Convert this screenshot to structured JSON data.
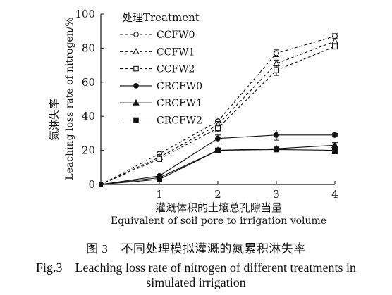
{
  "chart_data": {
    "type": "line",
    "x": [
      0,
      1,
      2,
      3,
      4
    ],
    "x_ticks": [
      1,
      2,
      3,
      4
    ],
    "xlim": [
      0,
      4
    ],
    "y_ticks": [
      0,
      20,
      40,
      60,
      80,
      100
    ],
    "ylim": [
      0,
      100
    ],
    "xlabel_cn": "灌溉体积的土壤总孔隙当量",
    "xlabel_en": "Equivalent of soil pore to irrigation volume",
    "ylabel_cn": "氮淋失率",
    "ylabel_en": "Leaching loss rate of nitrogen/%",
    "legend_title": "处理Treatment",
    "legend_position": "top-left",
    "series": [
      {
        "name": "CCFW0",
        "marker": "circle-open",
        "line": "dashed",
        "values": [
          0,
          18,
          37,
          77,
          87
        ],
        "errors": [
          0,
          1.5,
          2,
          2,
          1.5
        ]
      },
      {
        "name": "CCFW1",
        "marker": "triangle-open",
        "line": "dashed",
        "values": [
          0,
          16,
          35,
          71,
          84
        ],
        "errors": [
          0,
          1.5,
          2,
          2,
          1.5
        ]
      },
      {
        "name": "CCFW2",
        "marker": "square-open",
        "line": "dashed",
        "values": [
          0,
          15,
          33,
          67,
          81
        ],
        "errors": [
          0,
          1.5,
          2,
          3,
          1.5
        ]
      },
      {
        "name": "CRCFW0",
        "marker": "circle-filled",
        "line": "solid",
        "values": [
          0,
          5,
          27,
          29,
          29
        ],
        "errors": [
          0,
          1,
          2,
          3,
          1
        ]
      },
      {
        "name": "CRCFW1",
        "marker": "triangle-filled",
        "line": "solid",
        "values": [
          0,
          4,
          20,
          21,
          23
        ],
        "errors": [
          0,
          1,
          1,
          1,
          1.5
        ]
      },
      {
        "name": "CRCFW2",
        "marker": "square-filled",
        "line": "solid",
        "values": [
          0,
          3,
          20,
          20.5,
          20
        ],
        "errors": [
          0,
          1,
          1,
          1,
          2
        ]
      }
    ]
  },
  "caption": {
    "cn_number": "图 3",
    "cn_text": "不同处理模拟灌溉的氮累积淋失率",
    "en_line1": "Fig.3　Leaching loss rate of nitrogen of different treatments in",
    "en_line2": "simulated irrigation"
  }
}
